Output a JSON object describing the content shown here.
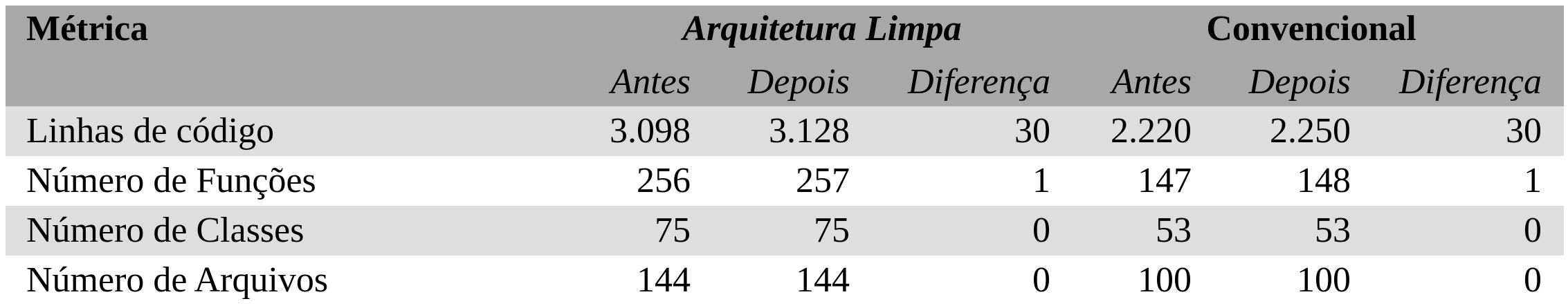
{
  "table": {
    "header": {
      "metric": "Métrica",
      "group_a": "Arquitetura Limpa",
      "group_b": "Convencional",
      "sub": [
        "Antes",
        "Depois",
        "Diferença",
        "Antes",
        "Depois",
        "Diferença"
      ]
    },
    "rows": [
      {
        "label": "Linhas de código",
        "values": [
          "3.098",
          "3.128",
          "30",
          "2.220",
          "2.250",
          "30"
        ]
      },
      {
        "label": "Número de Funções",
        "values": [
          "256",
          "257",
          "1",
          "147",
          "148",
          "1"
        ]
      },
      {
        "label": "Número de Classes",
        "values": [
          "75",
          "75",
          "0",
          "53",
          "53",
          "0"
        ]
      },
      {
        "label": "Número de Arquivos",
        "values": [
          "144",
          "144",
          "0",
          "100",
          "100",
          "0"
        ]
      }
    ],
    "colors": {
      "header_bg": "#a8a8a8",
      "stripe_bg": "#dedede",
      "plain_bg": "#ffffff"
    }
  }
}
